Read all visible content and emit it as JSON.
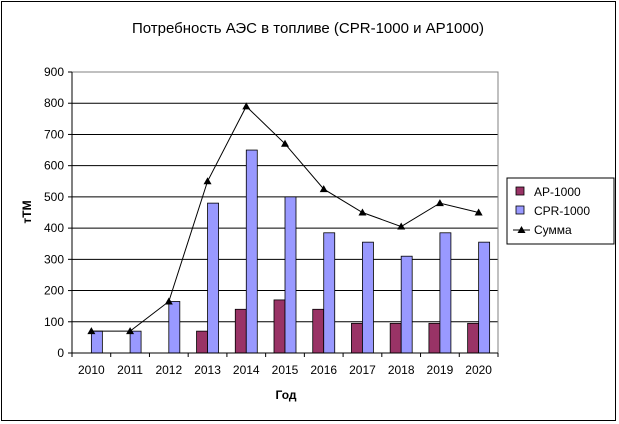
{
  "chart_data": {
    "type": "bar",
    "title": "Потребность АЭС в топливе (CPR-1000 и AP1000)",
    "xlabel": "Год",
    "ylabel": "тТМ",
    "categories": [
      "2010",
      "2011",
      "2012",
      "2013",
      "2014",
      "2015",
      "2016",
      "2017",
      "2018",
      "2019",
      "2020"
    ],
    "ylim": [
      0,
      900
    ],
    "yticks": [
      "0",
      "100",
      "200",
      "300",
      "400",
      "500",
      "600",
      "700",
      "800",
      "900"
    ],
    "grid": true,
    "legend_position": "right",
    "series": [
      {
        "name": "AP-1000",
        "kind": "bar",
        "color": "#993366",
        "values": [
          0,
          0,
          0,
          70,
          140,
          170,
          140,
          95,
          95,
          95,
          95
        ]
      },
      {
        "name": "CPR-1000",
        "kind": "bar",
        "color": "#9999ff",
        "values": [
          70,
          70,
          165,
          480,
          650,
          500,
          385,
          355,
          310,
          385,
          355
        ]
      },
      {
        "name": "Сумма",
        "kind": "line",
        "marker": "triangle",
        "color": "#000000",
        "values": [
          70,
          70,
          165,
          550,
          790,
          670,
          525,
          450,
          405,
          480,
          450
        ]
      }
    ]
  }
}
